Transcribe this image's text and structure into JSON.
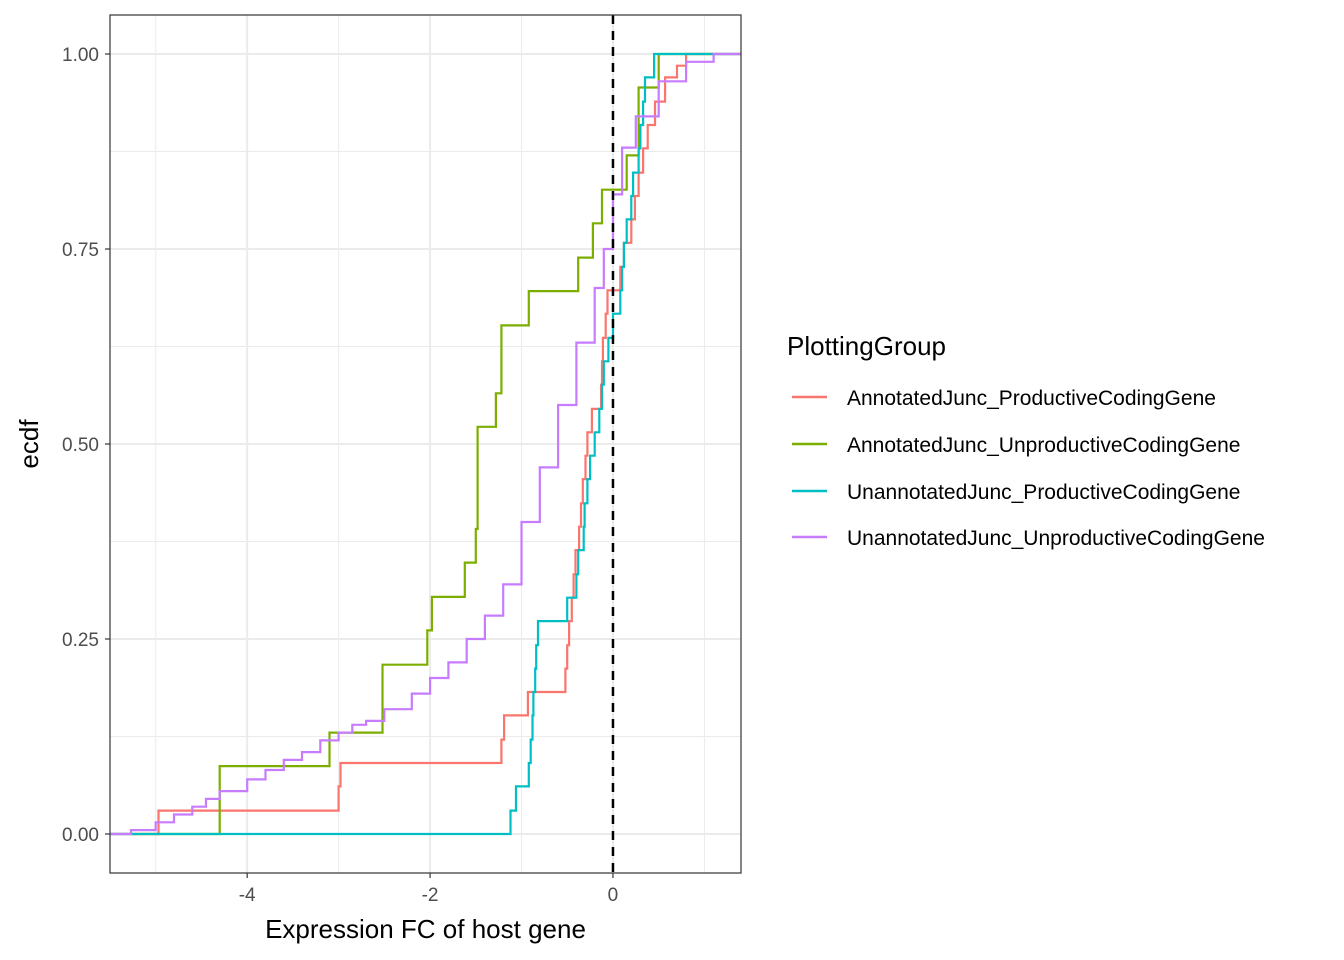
{
  "chart_data": {
    "type": "line",
    "step": true,
    "xlabel": "Expression FC of host gene",
    "ylabel": "ecdf",
    "xlim": [
      -5.5,
      1.4
    ],
    "ylim": [
      -0.05,
      1.05
    ],
    "x_ticks": [
      -4,
      -2,
      0
    ],
    "x_tick_labels": [
      "-4",
      "-2",
      "0"
    ],
    "y_ticks": [
      0,
      0.25,
      0.5,
      0.75,
      1.0
    ],
    "y_tick_labels": [
      "0.00",
      "0.25",
      "0.50",
      "0.75",
      "1.00"
    ],
    "grid": true,
    "reference_line": {
      "x": 0,
      "style": "dashed",
      "color": "#000000"
    },
    "legend": {
      "title": "PlottingGroup",
      "position": "right"
    },
    "series": [
      {
        "name": "AnnotatedJunc_ProductiveCodingGene",
        "color": "#F8766D",
        "x": [
          -5.5,
          -4.97,
          -3.0,
          -2.98,
          -1.22,
          -1.19,
          -0.93,
          -0.52,
          -0.5,
          -0.48,
          -0.45,
          -0.43,
          -0.41,
          -0.37,
          -0.35,
          -0.33,
          -0.3,
          -0.28,
          -0.23,
          -0.13,
          -0.12,
          -0.11,
          -0.08,
          -0.06,
          0.08,
          0.12,
          0.2,
          0.24,
          0.28,
          0.33,
          0.38,
          0.46,
          0.57,
          0.62,
          0.7,
          0.8,
          1.4
        ],
        "y": [
          0.0,
          0.03,
          0.061,
          0.091,
          0.121,
          0.152,
          0.182,
          0.212,
          0.242,
          0.273,
          0.303,
          0.333,
          0.364,
          0.394,
          0.424,
          0.455,
          0.485,
          0.515,
          0.545,
          0.576,
          0.606,
          0.636,
          0.667,
          0.697,
          0.727,
          0.758,
          0.788,
          0.818,
          0.848,
          0.879,
          0.909,
          0.939,
          0.97,
          0.97,
          0.985,
          1.0,
          1.0
        ]
      },
      {
        "name": "AnnotatedJunc_UnproductiveCodingGene",
        "color": "#7CAE00",
        "x": [
          -5.5,
          -4.4,
          -4.3,
          -3.1,
          -2.52,
          -2.03,
          -1.98,
          -1.62,
          -1.5,
          -1.48,
          -1.28,
          -1.22,
          -0.92,
          -0.38,
          -0.22,
          -0.12,
          -0.03,
          0.15,
          0.28,
          0.5,
          1.4
        ],
        "y": [
          0.0,
          0.0,
          0.087,
          0.13,
          0.217,
          0.261,
          0.304,
          0.348,
          0.391,
          0.522,
          0.565,
          0.652,
          0.696,
          0.739,
          0.783,
          0.826,
          0.826,
          0.87,
          0.957,
          1.0,
          1.0
        ]
      },
      {
        "name": "UnannotatedJunc_ProductiveCodingGene",
        "color": "#00BFC4",
        "x": [
          -5.5,
          -2.85,
          -1.12,
          -1.06,
          -0.92,
          -0.9,
          -0.88,
          -0.87,
          -0.85,
          -0.84,
          -0.82,
          -0.5,
          -0.4,
          -0.38,
          -0.32,
          -0.31,
          -0.28,
          -0.25,
          -0.2,
          -0.15,
          -0.12,
          -0.1,
          -0.05,
          0.0,
          0.08,
          0.1,
          0.12,
          0.15,
          0.2,
          0.22,
          0.28,
          0.3,
          0.33,
          0.35,
          0.45,
          1.4
        ],
        "y": [
          0.0,
          0.0,
          0.03,
          0.061,
          0.091,
          0.121,
          0.152,
          0.182,
          0.212,
          0.242,
          0.273,
          0.303,
          0.333,
          0.364,
          0.394,
          0.424,
          0.455,
          0.485,
          0.515,
          0.545,
          0.576,
          0.606,
          0.636,
          0.667,
          0.697,
          0.727,
          0.758,
          0.788,
          0.818,
          0.848,
          0.879,
          0.909,
          0.939,
          0.97,
          1.0,
          1.0
        ]
      },
      {
        "name": "UnannotatedJunc_UnproductiveCodingGene",
        "color": "#C77CFF",
        "x": [
          -5.5,
          -5.27,
          -5.0,
          -4.8,
          -4.6,
          -4.45,
          -4.3,
          -4.0,
          -3.8,
          -3.6,
          -3.4,
          -3.2,
          -3.0,
          -2.85,
          -2.7,
          -2.5,
          -2.2,
          -2.0,
          -1.8,
          -1.6,
          -1.4,
          -1.2,
          -1.0,
          -0.8,
          -0.6,
          -0.4,
          -0.2,
          -0.1,
          0.0,
          0.1,
          0.25,
          0.5,
          0.8,
          1.1,
          1.4
        ],
        "y": [
          0.0,
          0.005,
          0.015,
          0.025,
          0.035,
          0.045,
          0.055,
          0.07,
          0.082,
          0.095,
          0.105,
          0.12,
          0.13,
          0.14,
          0.145,
          0.16,
          0.18,
          0.2,
          0.22,
          0.25,
          0.28,
          0.32,
          0.4,
          0.47,
          0.55,
          0.63,
          0.7,
          0.75,
          0.82,
          0.88,
          0.92,
          0.965,
          0.99,
          1.0,
          1.0
        ]
      }
    ]
  }
}
